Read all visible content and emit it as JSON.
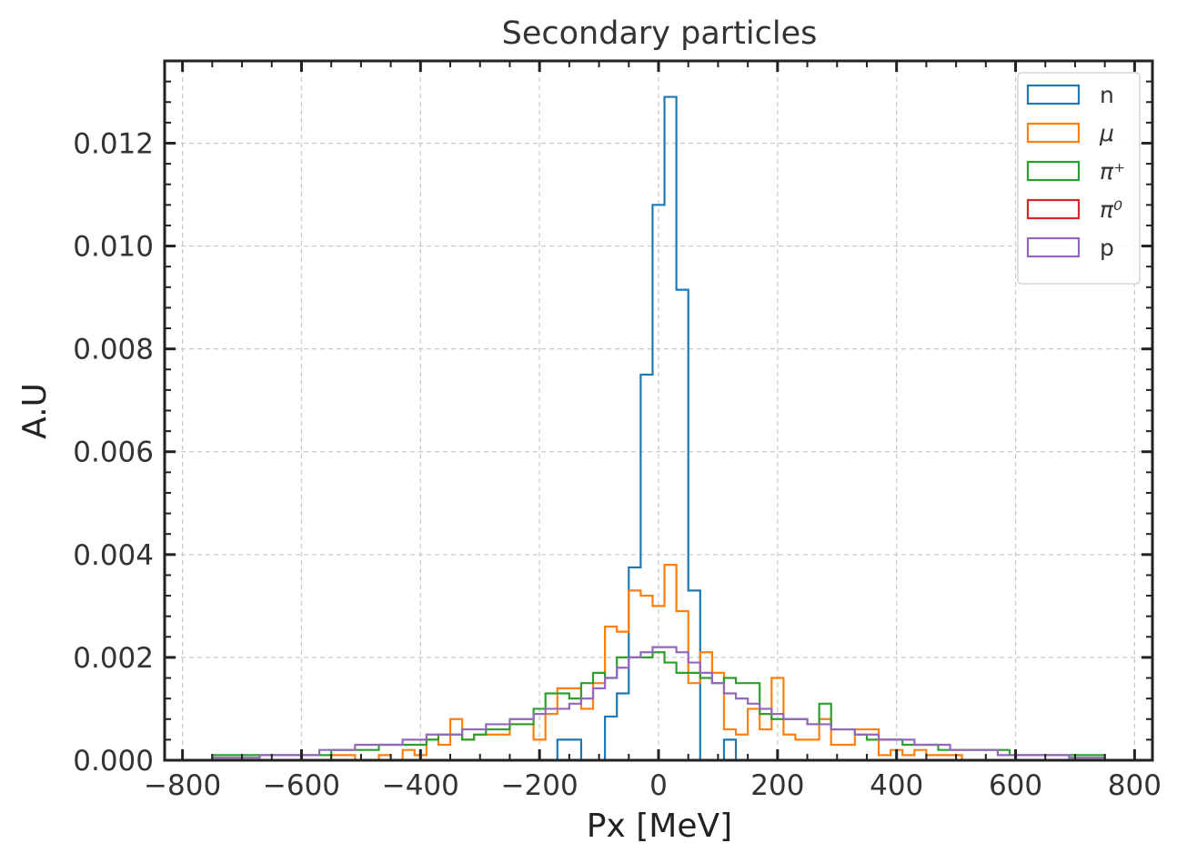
{
  "chart_data": {
    "type": "histogram",
    "title": "Secondary particles",
    "xlabel": "Px [MeV]",
    "ylabel": "A.U",
    "xlim": [
      -830,
      830
    ],
    "ylim": [
      0,
      0.0136
    ],
    "xticks": [
      -800,
      -600,
      -400,
      -200,
      0,
      200,
      400,
      600,
      800
    ],
    "xtick_labels": [
      "−800",
      "−600",
      "−400",
      "−200",
      "0",
      "200",
      "400",
      "600",
      "800"
    ],
    "yticks": [
      0,
      0.002,
      0.004,
      0.006,
      0.008,
      0.01,
      0.012
    ],
    "ytick_labels": [
      "0.000",
      "0.002",
      "0.004",
      "0.006",
      "0.008",
      "0.010",
      "0.012"
    ],
    "grid": true,
    "legend_position": "top-right",
    "bin_edges": [
      -750,
      -730,
      -710,
      -690,
      -670,
      -650,
      -630,
      -610,
      -590,
      -570,
      -550,
      -530,
      -510,
      -490,
      -470,
      -450,
      -430,
      -410,
      -390,
      -370,
      -350,
      -330,
      -310,
      -290,
      -270,
      -250,
      -230,
      -210,
      -190,
      -170,
      -150,
      -130,
      -110,
      -90,
      -70,
      -50,
      -30,
      -10,
      10,
      30,
      50,
      70,
      90,
      110,
      130,
      150,
      170,
      190,
      210,
      230,
      250,
      270,
      290,
      310,
      330,
      350,
      370,
      390,
      410,
      430,
      450,
      470,
      490,
      510,
      530,
      550,
      570,
      590,
      610,
      630,
      650,
      670,
      690,
      710,
      730,
      750
    ],
    "series": [
      {
        "name": "n",
        "color": "#1f77b4",
        "values": [
          0,
          0,
          0,
          0,
          0,
          0,
          0,
          0,
          0,
          0,
          0,
          0,
          0,
          0,
          0,
          0,
          0,
          0,
          0,
          0,
          0,
          0,
          0,
          0,
          0,
          0,
          0,
          0,
          0,
          0.0004,
          0.0004,
          0,
          0,
          0.00085,
          0.0013,
          0.00375,
          0.0075,
          0.0108,
          0.0129,
          0.00915,
          0.0033,
          0,
          0,
          0.0004,
          0,
          0,
          0,
          0,
          0,
          0,
          0,
          0,
          0,
          0,
          0,
          0,
          0,
          0,
          0,
          0,
          0,
          0,
          0,
          0,
          0,
          0,
          0,
          0,
          0,
          0,
          0,
          0,
          0,
          0,
          0
        ]
      },
      {
        "name": "μ",
        "color": "#ff7f0e",
        "values": [
          0,
          0,
          0,
          0,
          0,
          0,
          0,
          0,
          0,
          0,
          0.0001,
          0.0001,
          0,
          0,
          0.0001,
          0,
          0.0002,
          0.0001,
          0.0004,
          0.0003,
          0.0008,
          0.0004,
          0.0005,
          0.0005,
          0.0005,
          0.0007,
          0.0007,
          0.0004,
          0.0009,
          0.0014,
          0.0014,
          0.001,
          0.0015,
          0.0026,
          0.0025,
          0.0033,
          0.0032,
          0.003,
          0.0038,
          0.0029,
          0.0015,
          0.0021,
          0.0017,
          0.0006,
          0.0005,
          0.001,
          0.0006,
          0.0016,
          0.0005,
          0.0004,
          0.0004,
          0.0008,
          0.0003,
          0.0003,
          0.0006,
          0.0006,
          0.0001,
          0.0002,
          0.0001,
          0.0002,
          0.0001,
          0.0001,
          0.0001,
          0,
          0,
          0,
          0,
          0,
          0,
          0,
          0,
          0,
          0,
          0,
          0
        ]
      },
      {
        "name": "π⁺",
        "color": "#2ca02c",
        "values": [
          0.0001,
          0.0001,
          0.0001,
          0.0001,
          0.0001,
          0.0001,
          0.0001,
          0.0001,
          0.0001,
          0.0001,
          0.0002,
          0.0002,
          0.0002,
          0.0002,
          0.0003,
          0.0003,
          0.0003,
          0.0003,
          0.0004,
          0.0005,
          0.0005,
          0.0004,
          0.0005,
          0.0006,
          0.0006,
          0.0007,
          0.0007,
          0.001,
          0.0013,
          0.0013,
          0.0012,
          0.0015,
          0.0017,
          0.0016,
          0.002,
          0.002,
          0.002,
          0.0021,
          0.0019,
          0.0017,
          0.0017,
          0.0016,
          0.0015,
          0.0016,
          0.0015,
          0.0015,
          0.0009,
          0.0008,
          0.0008,
          0.0008,
          0.0007,
          0.0011,
          0.0006,
          0.0006,
          0.0005,
          0.0004,
          0.0004,
          0.0004,
          0.0003,
          0.0003,
          0.0003,
          0.0002,
          0.0002,
          0.0002,
          0.0002,
          0.0002,
          0.0002,
          0.0001,
          0.0001,
          0.0001,
          0.0001,
          0.0001,
          0.0001,
          0.0001,
          0.0001
        ]
      },
      {
        "name": "π⁰",
        "color": "#d62728",
        "values": [
          0,
          0,
          0,
          0,
          0,
          0,
          0,
          0,
          0,
          0,
          0,
          0,
          0,
          0,
          0,
          0,
          0,
          0,
          0,
          0,
          0,
          0,
          0,
          0,
          0,
          0,
          0,
          0,
          0,
          0,
          0,
          0,
          0,
          0,
          0,
          0,
          0,
          0,
          0,
          0,
          0,
          0,
          0,
          0,
          0,
          0,
          0,
          0,
          0,
          0,
          0,
          0,
          0,
          0,
          0,
          0,
          0,
          0,
          0,
          0,
          0,
          0,
          0,
          0,
          0,
          0,
          0,
          0,
          0,
          0,
          0,
          0,
          0,
          0,
          0
        ]
      },
      {
        "name": "p",
        "color": "#9467bd",
        "values": [
          5e-05,
          5e-05,
          5e-05,
          5e-05,
          0.0001,
          0.0001,
          0.0001,
          0.0001,
          0.0001,
          0.0002,
          0.0002,
          0.0002,
          0.0003,
          0.0003,
          0.0003,
          0.0003,
          0.0004,
          0.0004,
          0.0005,
          0.0005,
          0.0005,
          0.0006,
          0.0006,
          0.0007,
          0.0007,
          0.0008,
          0.0008,
          0.0009,
          0.001,
          0.001,
          0.0011,
          0.0012,
          0.0014,
          0.0016,
          0.0018,
          0.002,
          0.0021,
          0.0022,
          0.0022,
          0.0021,
          0.0019,
          0.0017,
          0.0015,
          0.0013,
          0.0012,
          0.0011,
          0.001,
          0.0009,
          0.0008,
          0.0008,
          0.0007,
          0.0007,
          0.0006,
          0.0006,
          0.0005,
          0.0005,
          0.0004,
          0.0004,
          0.0004,
          0.0003,
          0.0003,
          0.0003,
          0.0002,
          0.0002,
          0.0002,
          0.0002,
          0.0001,
          0.0001,
          0.0001,
          0.0001,
          0.0001,
          0.0001,
          5e-05,
          5e-05,
          5e-05
        ]
      }
    ]
  }
}
